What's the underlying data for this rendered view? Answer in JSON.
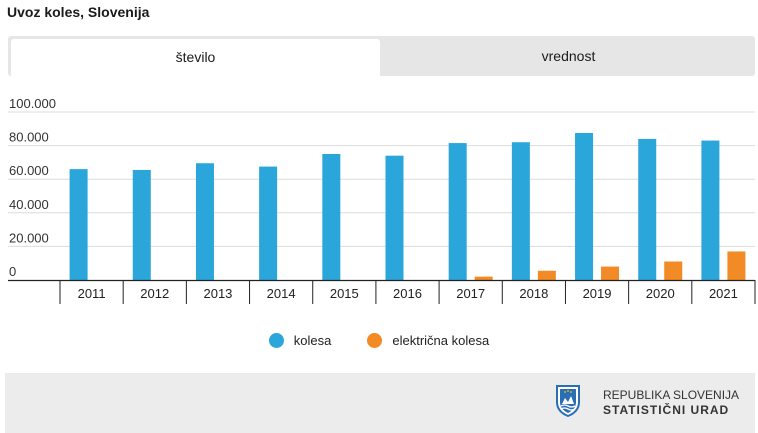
{
  "title": "Uvoz koles, Slovenija",
  "tabs": [
    {
      "label": "število",
      "active": true
    },
    {
      "label": "vrednost",
      "active": false
    }
  ],
  "chart_data": {
    "type": "bar",
    "categories": [
      "2011",
      "2012",
      "2013",
      "2014",
      "2015",
      "2016",
      "2017",
      "2018",
      "2019",
      "2020",
      "2021"
    ],
    "series": [
      {
        "name": "kolesa",
        "color": "#2aa6da",
        "values": [
          66000,
          65500,
          69500,
          67500,
          75000,
          74000,
          81500,
          82000,
          87500,
          84000,
          83000
        ]
      },
      {
        "name": "električna kolesa",
        "color": "#f28a25",
        "values": [
          0,
          0,
          0,
          0,
          0,
          0,
          2000,
          5500,
          8000,
          11000,
          17000
        ]
      }
    ],
    "yticks": [
      0,
      20000,
      40000,
      60000,
      80000,
      100000
    ],
    "ytick_labels": [
      "0",
      "20.000",
      "40.000",
      "60.000",
      "80.000",
      "100.000"
    ],
    "ylim": [
      0,
      100000
    ],
    "grid": true,
    "legend": "bottom-center"
  },
  "footer": {
    "org_line1": "REPUBLIKA SLOVENIJA",
    "org_line2": "STATISTIČNI URAD",
    "logo_icon": "coat-of-arms-icon"
  }
}
